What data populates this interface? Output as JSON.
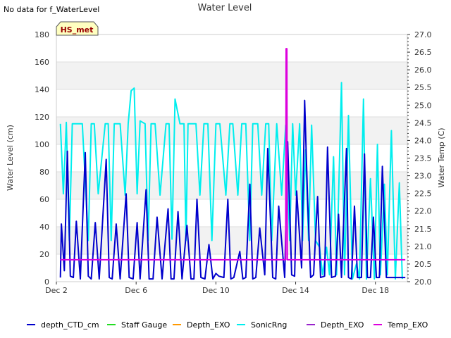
{
  "no_data_message": "No data for f_WaterLevel",
  "station_tag": "HS_met",
  "colors": {
    "depth_ctd": "#0000cc",
    "staff_gauge": "#22dd22",
    "depth_exo_orange": "#ff9900",
    "sonicrng": "#00eeee",
    "depth_exo_purple": "#9922cc",
    "temp_exo": "#dd00dd",
    "band": "#f2f2f2",
    "tag_fill": "#ffffc0",
    "tag_text": "#990000"
  },
  "chart_data": {
    "type": "line",
    "title": "Water Level",
    "ylabel": "Water Level (cm)",
    "y2label": "Water Temp (C)",
    "xlabel": "",
    "x_range_days": [
      2,
      19.6
    ],
    "ylim": [
      0,
      180
    ],
    "y2lim": [
      20.0,
      27.0
    ],
    "x_ticks": [
      {
        "day": 2,
        "label": "Dec 2"
      },
      {
        "day": 6,
        "label": "Dec 6"
      },
      {
        "day": 10,
        "label": "Dec 10"
      },
      {
        "day": 14,
        "label": "Dec 14"
      },
      {
        "day": 18,
        "label": "Dec 18"
      }
    ],
    "y_ticks": [
      {
        "v": 0,
        "label": "0"
      },
      {
        "v": 20,
        "label": "20"
      },
      {
        "v": 40,
        "label": "40"
      },
      {
        "v": 60,
        "label": "60"
      },
      {
        "v": 80,
        "label": "80"
      },
      {
        "v": 100,
        "label": "100"
      },
      {
        "v": 120,
        "label": "120"
      },
      {
        "v": 140,
        "label": "140"
      },
      {
        "v": 160,
        "label": "160"
      },
      {
        "v": 180,
        "label": "180"
      }
    ],
    "y2_ticks": [
      {
        "v": 20.0,
        "label": "20.0"
      },
      {
        "v": 20.5,
        "label": "20.5"
      },
      {
        "v": 21.0,
        "label": "21.0"
      },
      {
        "v": 21.5,
        "label": "21.5"
      },
      {
        "v": 22.0,
        "label": "22.0"
      },
      {
        "v": 22.5,
        "label": "22.5"
      },
      {
        "v": 23.0,
        "label": "23.0"
      },
      {
        "v": 23.5,
        "label": "23.5"
      },
      {
        "v": 24.0,
        "label": "24.0"
      },
      {
        "v": 24.5,
        "label": "24.5"
      },
      {
        "v": 25.0,
        "label": "25.0"
      },
      {
        "v": 25.5,
        "label": "25.5"
      },
      {
        "v": 26.0,
        "label": "26.0"
      },
      {
        "v": 26.5,
        "label": "26.5"
      },
      {
        "v": 27.0,
        "label": "27.0"
      }
    ],
    "grid": true,
    "legend_position": "bottom",
    "series": [
      {
        "name": "depth_CTD_cm",
        "color_key": "depth_ctd",
        "axis": "left",
        "x": [
          2.2,
          2.25,
          2.4,
          2.55,
          2.7,
          2.85,
          3.0,
          3.2,
          3.45,
          3.6,
          3.75,
          3.95,
          4.15,
          4.5,
          4.65,
          4.8,
          5.0,
          5.2,
          5.5,
          5.65,
          5.85,
          6.05,
          6.2,
          6.5,
          6.65,
          6.85,
          7.05,
          7.3,
          7.6,
          7.75,
          7.9,
          8.1,
          8.3,
          8.55,
          8.75,
          8.9,
          9.05,
          9.25,
          9.45,
          9.65,
          9.85,
          10.0,
          10.15,
          10.4,
          10.6,
          10.75,
          10.9,
          11.2,
          11.35,
          11.5,
          11.7,
          11.85,
          12.0,
          12.2,
          12.45,
          12.6,
          12.85,
          13.0,
          13.15,
          13.45,
          13.6,
          13.8,
          13.95,
          14.05,
          14.3,
          14.45,
          14.6,
          14.75,
          14.9,
          15.1,
          15.25,
          15.45,
          15.6,
          15.8,
          16.0,
          16.15,
          16.3,
          16.55,
          16.65,
          16.8,
          16.95,
          17.1,
          17.3,
          17.45,
          17.6,
          17.75,
          17.9,
          18.05,
          18.2,
          18.35,
          18.55,
          18.7,
          18.85,
          19.05,
          19.2,
          19.4,
          19.5
        ],
        "y": [
          3,
          42,
          8,
          95,
          4,
          3,
          44,
          2,
          94,
          4,
          2,
          43,
          2,
          89,
          3,
          2,
          42,
          2,
          64,
          3,
          2,
          43,
          2,
          67,
          2,
          2,
          47,
          2,
          53,
          2,
          2,
          51,
          2,
          41,
          2,
          2,
          60,
          3,
          2,
          27,
          2,
          6,
          4,
          3,
          60,
          2,
          3,
          22,
          2,
          3,
          71,
          2,
          3,
          39,
          5,
          97,
          3,
          2,
          55,
          3,
          102,
          5,
          4,
          66,
          10,
          132,
          60,
          3,
          5,
          62,
          3,
          4,
          98,
          3,
          4,
          49,
          3,
          97,
          3,
          2,
          55,
          3,
          3,
          93,
          3,
          3,
          47,
          3,
          3,
          84,
          3,
          3,
          3,
          3,
          3,
          3,
          3
        ]
      },
      {
        "name": "Staff Gauge",
        "color_key": "staff_gauge",
        "axis": "left",
        "x": [],
        "y": []
      },
      {
        "name": "Depth_EXO",
        "color_key": "depth_exo_orange",
        "axis": "left",
        "x": [],
        "y": []
      },
      {
        "name": "SonicRng",
        "color_key": "sonicrng",
        "axis": "left",
        "x": [
          2.2,
          2.35,
          2.5,
          2.65,
          2.8,
          3.0,
          3.3,
          3.6,
          3.75,
          3.9,
          4.1,
          4.45,
          4.6,
          4.75,
          4.9,
          5.2,
          5.45,
          5.6,
          5.75,
          5.9,
          6.05,
          6.2,
          6.45,
          6.6,
          6.75,
          6.95,
          7.2,
          7.5,
          7.65,
          7.8,
          7.95,
          8.2,
          8.4,
          8.5,
          8.6,
          8.8,
          9.0,
          9.2,
          9.4,
          9.6,
          9.8,
          10.0,
          10.2,
          10.5,
          10.7,
          10.85,
          11.1,
          11.3,
          11.5,
          11.7,
          11.85,
          12.1,
          12.3,
          12.5,
          12.65,
          12.8,
          13.05,
          13.3,
          13.5,
          13.7,
          13.85,
          14.0,
          14.2,
          14.35,
          14.5,
          14.65,
          14.8,
          15.0,
          15.2,
          15.35,
          15.55,
          15.7,
          15.9,
          16.05,
          16.3,
          16.45,
          16.65,
          16.85,
          17.05,
          17.2,
          17.4,
          17.55,
          17.75,
          17.95,
          18.1,
          18.25,
          18.45,
          18.6,
          18.8,
          19.0,
          19.2,
          19.35
        ],
        "y": [
          115,
          64,
          116,
          30,
          115,
          115,
          115,
          30,
          115,
          115,
          64,
          115,
          115,
          30,
          115,
          115,
          63,
          115,
          139,
          141,
          64,
          117,
          115,
          30,
          115,
          115,
          63,
          115,
          115,
          31,
          133,
          115,
          115,
          30,
          115,
          115,
          115,
          63,
          115,
          115,
          30,
          115,
          115,
          63,
          115,
          115,
          63,
          115,
          115,
          30,
          115,
          115,
          63,
          115,
          115,
          30,
          115,
          63,
          114,
          30,
          115,
          63,
          115,
          30,
          96,
          30,
          114,
          30,
          25,
          5,
          25,
          5,
          91,
          5,
          145,
          5,
          121,
          2,
          13,
          2,
          133,
          2,
          75,
          2,
          100,
          5,
          71,
          5,
          110,
          2,
          72,
          2
        ]
      },
      {
        "name": "Depth_EXO",
        "color_key": "depth_exo_purple",
        "axis": "left",
        "x": [],
        "y": []
      },
      {
        "name": "Temp_EXO",
        "color_key": "temp_exo",
        "axis": "right",
        "x": [
          2.2,
          13.5,
          13.52,
          13.56,
          13.58,
          19.5
        ],
        "y": [
          20.62,
          20.62,
          26.6,
          26.6,
          20.62,
          20.62
        ]
      }
    ]
  }
}
